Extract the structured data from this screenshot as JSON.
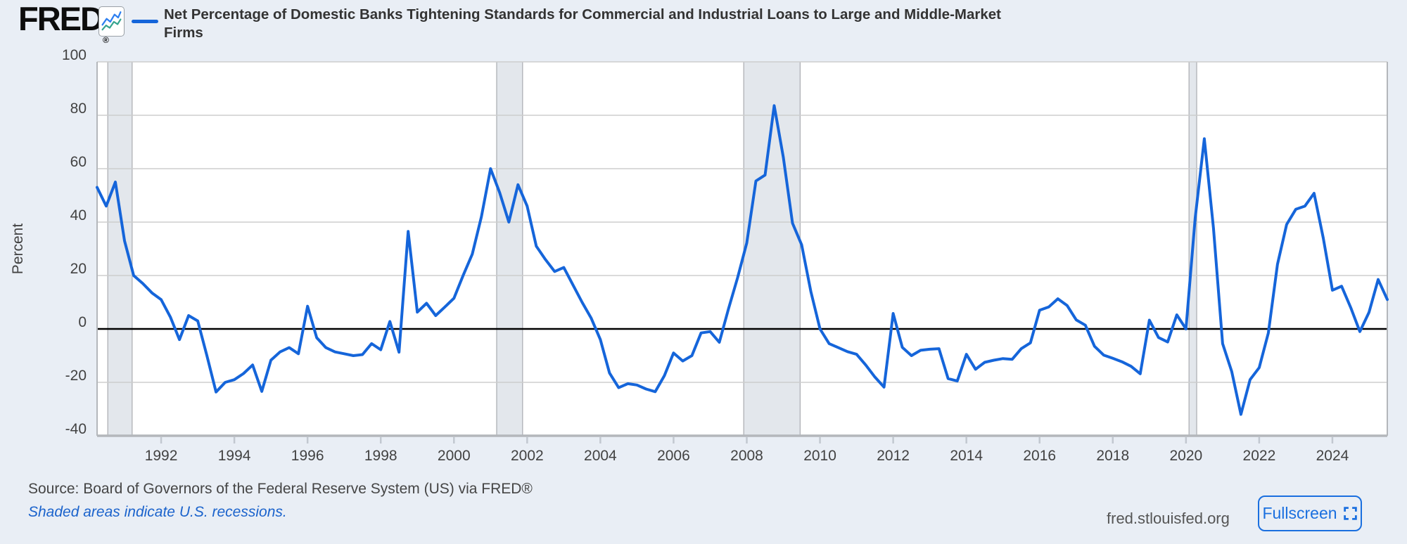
{
  "header": {
    "logo_text": "FRED",
    "registered_mark": "®",
    "series_title": "Net Percentage of Domestic Banks Tightening Standards for Commercial and Industrial Loans to Large and Middle-Market Firms"
  },
  "footer": {
    "source_text": "Source: Board of Governors of the Federal Reserve System (US) via FRED®",
    "recession_note": "Shaded areas indicate U.S. recessions.",
    "site_url": "fred.stlouisfed.org",
    "fullscreen_label": "Fullscreen"
  },
  "colors": {
    "page_background": "#e9eef5",
    "plot_background": "#ffffff",
    "line": "#1565da",
    "legend_swatch": "#1565da",
    "zero_line": "#000000",
    "gridline": "#cdcdcd",
    "plot_border": "#b4b7bb",
    "recession_fill": "#e3e7ec",
    "recession_edge": "#a9abb0",
    "tick": "#c2c8d0",
    "axis_text": "#424242",
    "link_blue": "#1b63cc",
    "button_blue": "#1a6fdf",
    "logo_icon_blue": "#2d7ff0",
    "logo_icon_teal": "#36a48f"
  },
  "chart_data": {
    "type": "line",
    "title": "Net Percentage of Domestic Banks Tightening Standards for Commercial and Industrial Loans to Large and Middle-Market Firms",
    "ylabel": "Percent",
    "ylim": [
      -40,
      100
    ],
    "y_ticks": [
      100,
      80,
      60,
      40,
      20,
      0,
      -20,
      -40
    ],
    "x_tick_years": [
      1992,
      1994,
      1996,
      1998,
      2000,
      2002,
      2004,
      2006,
      2008,
      2010,
      2012,
      2014,
      2016,
      2018,
      2020,
      2022,
      2024
    ],
    "grid": "horizontal-only",
    "legend_position": "top-left",
    "frequency": "quarterly",
    "start_period": "1990 Q2",
    "end_period": "2025 Q3",
    "start_year_decimal": 1990.25,
    "values": [
      53,
      46,
      55,
      33,
      20,
      17,
      13.5,
      11,
      4.5,
      -4,
      5,
      3,
      -10,
      -23.6,
      -20,
      -19,
      -16.7,
      -13.5,
      -23.4,
      -11.7,
      -8.6,
      -7,
      -9.3,
      8.5,
      -3.3,
      -7,
      -8.6,
      -9.3,
      -10,
      -9.6,
      -5.5,
      -7.8,
      2.8,
      -8.7,
      36.5,
      6.3,
      9.6,
      5,
      8.2,
      11.5,
      20,
      28,
      42,
      60,
      51,
      40,
      54,
      46,
      31,
      26,
      21.5,
      23,
      16.5,
      10,
      4,
      -4,
      -16.5,
      -22,
      -20.5,
      -21,
      -22.5,
      -23.5,
      -17.5,
      -9,
      -12,
      -10,
      -1.5,
      -1,
      -5,
      7.5,
      19.2,
      32.2,
      55.4,
      57.6,
      83.6,
      64.2,
      39.6,
      31.5,
      14,
      0,
      -5.5,
      -7,
      -8.5,
      -9.5,
      -13.5,
      -18,
      -21.8,
      5.8,
      -6.9,
      -10,
      -8,
      -7.6,
      -7.4,
      -18.6,
      -19.5,
      -9.5,
      -15.1,
      -12.5,
      -11.7,
      -11.1,
      -11.4,
      -7.4,
      -5.2,
      7,
      8.2,
      11.3,
      8.8,
      3.4,
      1.4,
      -6.5,
      -9.8,
      -11,
      -12.3,
      -14,
      -16.8,
      3.3,
      -3.2,
      -4.9,
      5.3,
      0,
      41.5,
      71.2,
      37.7,
      -5.5,
      -16,
      -32,
      -19,
      -14.5,
      -1.5,
      24.2,
      39.1,
      44.8,
      46,
      50.8,
      34,
      14.5,
      16,
      8,
      -1,
      6.2,
      18.5,
      11
    ],
    "recessions": [
      {
        "start": 1990.542,
        "end": 1991.208
      },
      {
        "start": 2001.167,
        "end": 2001.875
      },
      {
        "start": 2007.917,
        "end": 2009.458
      },
      {
        "start": 2020.083,
        "end": 2020.292
      }
    ]
  }
}
